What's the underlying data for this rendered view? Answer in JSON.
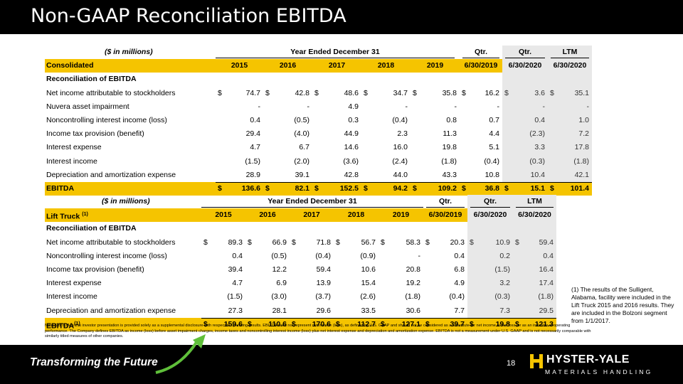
{
  "title": "Non-GAAP Reconciliation EBITDA",
  "colors": {
    "highlight": "#f5c400",
    "ltm_bg": "#e8e8e8",
    "bar": "#000000"
  },
  "table1": {
    "units": "($ in millions)",
    "group_year": "Year Ended December 31",
    "group_qtr1": "Qtr.",
    "group_qtr2": "Qtr.",
    "group_ltm": "LTM",
    "segment": "Consolidated",
    "segment_sup": "",
    "col_heads": [
      "2015",
      "2016",
      "2017",
      "2018",
      "2019",
      "6/30/2019",
      "6/30/2020",
      "6/30/2020"
    ],
    "section": "Reconciliation of EBITDA",
    "rows": [
      {
        "label": "Net income attributable to stockholders",
        "dollar": true,
        "values": [
          "74.7",
          "42.8",
          "48.6",
          "34.7",
          "35.8",
          "16.2",
          "3.6",
          "35.1"
        ]
      },
      {
        "label": "Nuvera asset impairment",
        "dollar": false,
        "values": [
          "-",
          "-",
          "4.9",
          "-",
          "-",
          "-",
          "-",
          "-"
        ]
      },
      {
        "label": "Noncontrolling interest income (loss)",
        "dollar": false,
        "values": [
          "0.4",
          "(0.5)",
          "0.3",
          "(0.4)",
          "0.8",
          "0.7",
          "0.4",
          "1.0"
        ]
      },
      {
        "label": "Income tax provision (benefit)",
        "dollar": false,
        "values": [
          "29.4",
          "(4.0)",
          "44.9",
          "2.3",
          "11.3",
          "4.4",
          "(2.3)",
          "7.2"
        ]
      },
      {
        "label": "Interest expense",
        "dollar": false,
        "values": [
          "4.7",
          "6.7",
          "14.6",
          "16.0",
          "19.8",
          "5.1",
          "3.3",
          "17.8"
        ]
      },
      {
        "label": "Interest income",
        "dollar": false,
        "values": [
          "(1.5)",
          "(2.0)",
          "(3.6)",
          "(2.4)",
          "(1.8)",
          "(0.4)",
          "(0.3)",
          "(1.8)"
        ]
      },
      {
        "label": "Depreciation and amortization expense",
        "dollar": false,
        "values": [
          "28.9",
          "39.1",
          "42.8",
          "44.0",
          "43.3",
          "10.8",
          "10.4",
          "42.1"
        ]
      }
    ],
    "total": {
      "label": "EBITDA",
      "sup": "",
      "values": [
        "136.6",
        "82.1",
        "152.5",
        "94.2",
        "109.2",
        "36.8",
        "15.1",
        "101.4"
      ]
    }
  },
  "table2": {
    "units": "($ in millions)",
    "group_year": "Year Ended December 31",
    "group_qtr1": "Qtr.",
    "group_qtr2": "Qtr.",
    "group_ltm": "LTM",
    "segment": "Lift Truck",
    "segment_sup": "(1)",
    "col_heads": [
      "2015",
      "2016",
      "2017",
      "2018",
      "2019",
      "6/30/2019",
      "6/30/2020",
      "6/30/2020"
    ],
    "section": "Reconciliation of EBITDA",
    "rows": [
      {
        "label": "Net income attributable to stockholders",
        "dollar": true,
        "values": [
          "89.3",
          "66.9",
          "71.8",
          "56.7",
          "58.3",
          "20.3",
          "10.9",
          "59.4"
        ]
      },
      {
        "label": "Noncontrolling interest income (loss)",
        "dollar": false,
        "values": [
          "0.4",
          "(0.5)",
          "(0.4)",
          "(0.9)",
          "-",
          "0.4",
          "0.2",
          "0.4"
        ]
      },
      {
        "label": "Income tax provision (benefit)",
        "dollar": false,
        "values": [
          "39.4",
          "12.2",
          "59.4",
          "10.6",
          "20.8",
          "6.8",
          "(1.5)",
          "16.4"
        ]
      },
      {
        "label": "Interest expense",
        "dollar": false,
        "values": [
          "4.7",
          "6.9",
          "13.9",
          "15.4",
          "19.2",
          "4.9",
          "3.2",
          "17.4"
        ]
      },
      {
        "label": "Interest income",
        "dollar": false,
        "values": [
          "(1.5)",
          "(3.0)",
          "(3.7)",
          "(2.6)",
          "(1.8)",
          "(0.4)",
          "(0.3)",
          "(1.8)"
        ]
      },
      {
        "label": "Depreciation and amortization expense",
        "dollar": false,
        "values": [
          "27.3",
          "28.1",
          "29.6",
          "33.5",
          "30.6",
          "7.7",
          "7.3",
          "29.5"
        ]
      }
    ],
    "total": {
      "label": "EBITDA",
      "sup": "(1)",
      "values": [
        "159.6",
        "110.6",
        "170.6",
        "112.7",
        "127.1",
        "39.7",
        "19.8",
        "121.3"
      ]
    }
  },
  "dollar_sign": "$",
  "side_note": "(1) The results of the Sulligent, Alabama, facility were included in the Lift Truck 2015 and 2016 results. They are included in the Bolzoni segment from 1/1/2017.",
  "footnote": "Note: EBITDA in this investor presentation is provided solely as a supplemental disclosure with respect to operating results. EBITDA does not represent net income (loss), as defined by U.S. GAAP and should not be considered as a substitute for net income or net loss, or as an indicator of operating performance. The Company defines EBITDA as income (loss) before asset impairment charges, income taxes and noncontrolling interest income (loss) plus net interest expense and depreciation and amortization expense. EBITDA is not a measurement under U.S. GAAP and is not necessarily comparable with similarly titled measures of other companies.",
  "footer": {
    "tagline": "Transforming the Future",
    "page_number": "18",
    "logo_text": "HYSTER-YALE",
    "logo_sub": "MATERIALS HANDLING"
  }
}
